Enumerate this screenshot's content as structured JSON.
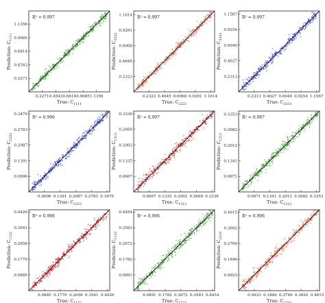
{
  "chart_data": [
    {
      "type": "scatter",
      "r2_label": "R² = 0.997",
      "color": "#2e9a1e",
      "ylabel_base": "Prediction: C",
      "ylabel_sub": "1111",
      "xlabel_base": "True: C",
      "xlabel_sub": "1111",
      "xlim": [
        0.0,
        1.3556
      ],
      "ylim": [
        0.0,
        1.3556
      ],
      "xticks": [
        "0.2271",
        "0.4543",
        "0.6814",
        "0.9085",
        "1.1356"
      ],
      "yticks": [
        "0.2271",
        "0.4543",
        "0.6814",
        "0.9085",
        "1.1356"
      ],
      "tick_values": [
        0.2271,
        0.4543,
        0.6814,
        0.9085,
        1.1356
      ],
      "ytick_values": [
        0.2271,
        0.4543,
        0.6814,
        0.9085,
        1.1356
      ],
      "x": [
        0.12,
        0.2,
        0.3,
        0.42,
        0.55,
        0.68,
        0.8,
        0.92,
        1.05,
        1.18,
        1.28
      ],
      "y": [
        0.13,
        0.21,
        0.29,
        0.43,
        0.54,
        0.69,
        0.79,
        0.93,
        1.04,
        1.19,
        1.27
      ],
      "spread": 0.035
    },
    {
      "type": "scatter",
      "r2_label": "R² = 0.997",
      "color": "#e05a33",
      "ylabel_base": "Prediction: C",
      "ylabel_sub": "2222",
      "xlabel_base": "True: C",
      "xlabel_sub": "2222",
      "xlim": [
        0.0,
        1.22
      ],
      "ylim": [
        0.0,
        1.22
      ],
      "xticks": [
        "0.2323",
        "0.4645",
        "0.6968",
        "0.9291",
        "1.1614"
      ],
      "yticks": [
        "0.2323",
        "0.4645",
        "0.6968",
        "0.9291",
        "1.1614"
      ],
      "tick_values": [
        0.2323,
        0.4645,
        0.6968,
        0.9291,
        1.1614
      ],
      "ytick_values": [
        0.2323,
        0.4645,
        0.6968,
        0.9291,
        1.1614
      ],
      "x": [
        0.12,
        0.22,
        0.33,
        0.45,
        0.57,
        0.69,
        0.81,
        0.93,
        1.04,
        1.15
      ],
      "y": [
        0.13,
        0.21,
        0.34,
        0.44,
        0.58,
        0.68,
        0.82,
        0.92,
        1.05,
        1.14
      ],
      "spread": 0.035
    },
    {
      "type": "scatter",
      "r2_label": "R² = 0.997",
      "color": "#2f3fd0",
      "ylabel_base": "Prediction: C",
      "ylabel_sub": "3333",
      "xlabel_base": "True: C",
      "xlabel_sub": "3333",
      "xlim": [
        0.0,
        1.2
      ],
      "ylim": [
        0.0,
        1.2
      ],
      "xticks": [
        "0.2313",
        "0.4627",
        "0.6940",
        "0.9254",
        "1.1567"
      ],
      "yticks": [
        "0.2313",
        "0.4627",
        "0.6940",
        "0.9254",
        "1.1567"
      ],
      "tick_values": [
        0.2313,
        0.4627,
        0.694,
        0.9254,
        1.1567
      ],
      "ytick_values": [
        0.2313,
        0.4627,
        0.694,
        0.9254,
        1.1567
      ],
      "x": [
        0.12,
        0.22,
        0.33,
        0.45,
        0.57,
        0.69,
        0.81,
        0.93,
        1.04,
        1.14
      ],
      "y": [
        0.13,
        0.21,
        0.34,
        0.44,
        0.58,
        0.68,
        0.82,
        0.92,
        1.05,
        1.13
      ],
      "spread": 0.035
    },
    {
      "type": "scatter",
      "r2_label": "R² = 0.996",
      "color": "#2f3fd0",
      "ylabel_base": "Prediction: C",
      "ylabel_sub": "2323",
      "xlabel_base": "True: C",
      "xlabel_sub": "2323",
      "xlim": [
        0.0,
        0.36
      ],
      "ylim": [
        0.0,
        0.36
      ],
      "xticks": [
        "0.0696",
        "0.1391",
        "0.2087",
        "0.2783",
        "0.3479"
      ],
      "yticks": [
        "0.0696",
        "0.1391",
        "0.2087",
        "0.2783",
        "0.3479"
      ],
      "tick_values": [
        0.0696,
        0.1391,
        0.2087,
        0.2783,
        0.3479
      ],
      "ytick_values": [
        0.0696,
        0.1391,
        0.2087,
        0.2783,
        0.3479
      ],
      "x": [
        0.03,
        0.06,
        0.09,
        0.12,
        0.15,
        0.18,
        0.21,
        0.24,
        0.27,
        0.3,
        0.33
      ],
      "y": [
        0.033,
        0.058,
        0.094,
        0.118,
        0.154,
        0.177,
        0.214,
        0.236,
        0.273,
        0.297,
        0.332
      ],
      "spread": 0.011
    },
    {
      "type": "scatter",
      "r2_label": "R² = 0.997",
      "color": "#d81e1e",
      "ylabel_base": "Prediction: C",
      "ylabel_sub": "1313",
      "xlabel_base": "True: C",
      "xlabel_sub": "1313",
      "xlim": [
        0.0,
        0.345
      ],
      "ylim": [
        0.0,
        0.345
      ],
      "xticks": [
        "0.0667",
        "0.1335",
        "0.2002",
        "0.2669",
        "0.3336"
      ],
      "yticks": [
        "0.0667",
        "0.1335",
        "0.2002",
        "0.2669",
        "0.3336"
      ],
      "tick_values": [
        0.0667,
        0.1335,
        0.2002,
        0.2669,
        0.3336
      ],
      "ytick_values": [
        0.0667,
        0.1335,
        0.2002,
        0.2669,
        0.3336
      ],
      "x": [
        0.03,
        0.06,
        0.09,
        0.12,
        0.15,
        0.18,
        0.21,
        0.24,
        0.27,
        0.3,
        0.33
      ],
      "y": [
        0.032,
        0.061,
        0.088,
        0.122,
        0.148,
        0.182,
        0.208,
        0.242,
        0.268,
        0.302,
        0.328
      ],
      "spread": 0.011
    },
    {
      "type": "scatter",
      "r2_label": "R² = 0.997",
      "color": "#2e9a1e",
      "ylabel_base": "Prediction: C",
      "ylabel_sub": "1212",
      "xlabel_base": "True: C",
      "xlabel_sub": "1212",
      "xlim": [
        0.0,
        0.348
      ],
      "ylim": [
        0.0,
        0.348
      ],
      "xticks": [
        "0.0671",
        "0.1341",
        "0.2012",
        "0.2682",
        "0.3353"
      ],
      "yticks": [
        "0.0671",
        "0.1341",
        "0.2012",
        "0.2682",
        "0.3353"
      ],
      "tick_values": [
        0.0671,
        0.1341,
        0.2012,
        0.2682,
        0.3353
      ],
      "ytick_values": [
        0.0671,
        0.1341,
        0.2012,
        0.2682,
        0.3353
      ],
      "x": [
        0.03,
        0.06,
        0.09,
        0.12,
        0.15,
        0.18,
        0.21,
        0.24,
        0.27,
        0.3,
        0.33
      ],
      "y": [
        0.031,
        0.062,
        0.089,
        0.121,
        0.151,
        0.179,
        0.211,
        0.239,
        0.271,
        0.299,
        0.331
      ],
      "spread": 0.011
    },
    {
      "type": "scatter",
      "r2_label": "R² = 0.996",
      "color": "#d81e1e",
      "ylabel_base": "Prediction: C",
      "ylabel_sub": "1122",
      "xlabel_base": "True: C",
      "xlabel_sub": "1122",
      "xlim": [
        0.0,
        0.455
      ],
      "ylim": [
        0.0,
        0.455
      ],
      "xticks": [
        "0.0885",
        "0.1770",
        "0.2656",
        "0.3541",
        "0.4426"
      ],
      "yticks": [
        "0.0885",
        "0.1770",
        "0.2656",
        "0.3541",
        "0.4426"
      ],
      "tick_values": [
        0.0885,
        0.177,
        0.2656,
        0.3541,
        0.4426
      ],
      "ytick_values": [
        0.0885,
        0.177,
        0.2656,
        0.3541,
        0.4426
      ],
      "x": [
        0.04,
        0.08,
        0.12,
        0.16,
        0.2,
        0.24,
        0.28,
        0.32,
        0.36,
        0.4,
        0.43
      ],
      "y": [
        0.042,
        0.078,
        0.123,
        0.158,
        0.204,
        0.237,
        0.284,
        0.318,
        0.364,
        0.397,
        0.428
      ],
      "spread": 0.015
    },
    {
      "type": "scatter",
      "r2_label": "R² = 0.996",
      "color": "#2e9a1e",
      "ylabel_base": "Prediction: C",
      "ylabel_sub": "1133",
      "xlabel_base": "True: C",
      "xlabel_sub": "1133",
      "xlim": [
        0.0,
        0.458
      ],
      "ylim": [
        0.0,
        0.458
      ],
      "xticks": [
        "0.0891",
        "0.1782",
        "0.2672",
        "0.3563",
        "0.4454"
      ],
      "yticks": [
        "0.0891",
        "0.1782",
        "0.2672",
        "0.3563",
        "0.4454"
      ],
      "tick_values": [
        0.0891,
        0.1782,
        0.2672,
        0.3563,
        0.4454
      ],
      "ytick_values": [
        0.0891,
        0.1782,
        0.2672,
        0.3563,
        0.4454
      ],
      "x": [
        0.04,
        0.08,
        0.12,
        0.16,
        0.2,
        0.24,
        0.28,
        0.32,
        0.36,
        0.4,
        0.44
      ],
      "y": [
        0.041,
        0.079,
        0.122,
        0.159,
        0.202,
        0.238,
        0.282,
        0.319,
        0.362,
        0.398,
        0.438
      ],
      "spread": 0.015
    },
    {
      "type": "scatter",
      "r2_label": "R² = 0.996",
      "color": "#e05a33",
      "ylabel_base": "Prediction: C",
      "ylabel_sub": "2233",
      "xlabel_base": "True: C",
      "xlabel_sub": "2233",
      "xlim": [
        0.0,
        0.475
      ],
      "ylim": [
        0.0,
        0.475
      ],
      "xticks": [
        "0.0923",
        "0.1846",
        "0.2769",
        "0.3692",
        "0.4615"
      ],
      "yticks": [
        "0.0923",
        "0.1846",
        "0.2769",
        "0.3692",
        "0.4615"
      ],
      "tick_values": [
        0.0923,
        0.1846,
        0.2769,
        0.3692,
        0.4615
      ],
      "ytick_values": [
        0.0923,
        0.1846,
        0.2769,
        0.3692,
        0.4615
      ],
      "x": [
        0.04,
        0.08,
        0.12,
        0.16,
        0.2,
        0.24,
        0.28,
        0.32,
        0.36,
        0.4,
        0.45
      ],
      "y": [
        0.041,
        0.081,
        0.119,
        0.162,
        0.198,
        0.242,
        0.278,
        0.322,
        0.358,
        0.402,
        0.447
      ],
      "spread": 0.015
    }
  ]
}
